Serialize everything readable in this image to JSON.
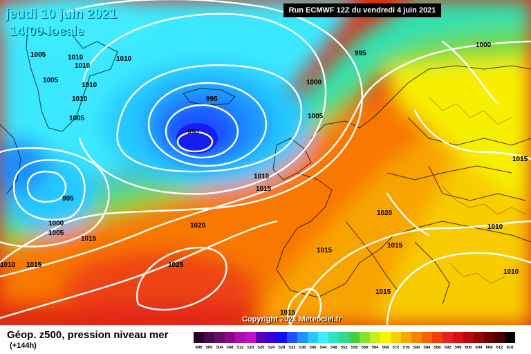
{
  "header": {
    "date_label": "jeudi 10 juin 2021",
    "time_label": "14:00 locale",
    "run_label": "Run ECMWF 12Z du vendredi 4 juin 2021"
  },
  "copyright": "Copyright 2021 Meteociel.fr",
  "pressure_labels": [
    {
      "id": "p-1005-a",
      "text": "1005"
    },
    {
      "id": "p-1010-a",
      "text": "1010"
    },
    {
      "id": "p-1010-b",
      "text": "1010"
    },
    {
      "id": "p-1010-c",
      "text": "1010"
    },
    {
      "id": "p-1005-b",
      "text": "1005"
    },
    {
      "id": "p-1010-d",
      "text": "1010"
    },
    {
      "id": "p-1010-e",
      "text": "1010"
    },
    {
      "id": "p-1005-c",
      "text": "1005"
    },
    {
      "id": "p-995-a",
      "text": "995"
    },
    {
      "id": "p-990",
      "text": "990"
    },
    {
      "id": "p-995-b",
      "text": "995"
    },
    {
      "id": "p-1000-a",
      "text": "1000"
    },
    {
      "id": "p-1000-b",
      "text": "1000"
    },
    {
      "id": "p-1005-d",
      "text": "1005"
    },
    {
      "id": "p-1010-f",
      "text": "1010"
    },
    {
      "id": "p-1015-a",
      "text": "1015"
    },
    {
      "id": "p-995-c",
      "text": "995"
    },
    {
      "id": "p-1000-c",
      "text": "1000"
    },
    {
      "id": "p-1005-e",
      "text": "1005"
    },
    {
      "id": "p-1015-b",
      "text": "1015"
    },
    {
      "id": "p-1010-g",
      "text": "1010"
    },
    {
      "id": "p-1015-c",
      "text": "1015"
    },
    {
      "id": "p-1020-a",
      "text": "1020"
    },
    {
      "id": "p-1025",
      "text": "1025"
    },
    {
      "id": "p-1020-b",
      "text": "1020"
    },
    {
      "id": "p-1015-d",
      "text": "1015"
    },
    {
      "id": "p-1015-e",
      "text": "1015"
    },
    {
      "id": "p-1015-f",
      "text": "1015"
    },
    {
      "id": "p-1015-g",
      "text": "1015"
    },
    {
      "id": "p-1015-h",
      "text": "1015"
    },
    {
      "id": "p-1010-h",
      "text": "1010"
    },
    {
      "id": "p-1010-i",
      "text": "1010"
    }
  ],
  "legend": {
    "title": "Géop. z500, pression niveau mer",
    "subtitle": "(+144h)",
    "scale": [
      {
        "value": "496",
        "color": "#2a002a"
      },
      {
        "value": "500",
        "color": "#4a0a4a"
      },
      {
        "value": "504",
        "color": "#6a0a6a"
      },
      {
        "value": "508",
        "color": "#8a0a8a"
      },
      {
        "value": "512",
        "color": "#aa10aa"
      },
      {
        "value": "516",
        "color": "#c010c0"
      },
      {
        "value": "520",
        "color": "#5a00b4"
      },
      {
        "value": "524",
        "color": "#3800d8"
      },
      {
        "value": "528",
        "color": "#1010f0"
      },
      {
        "value": "532",
        "color": "#1e50ff"
      },
      {
        "value": "536",
        "color": "#1e90ff"
      },
      {
        "value": "540",
        "color": "#28c8ff"
      },
      {
        "value": "544",
        "color": "#40ecff"
      },
      {
        "value": "548",
        "color": "#30e4c0"
      },
      {
        "value": "552",
        "color": "#30d890"
      },
      {
        "value": "556",
        "color": "#40d040"
      },
      {
        "value": "560",
        "color": "#88e030"
      },
      {
        "value": "564",
        "color": "#c8ee20"
      },
      {
        "value": "568",
        "color": "#f6f600"
      },
      {
        "value": "572",
        "color": "#f6d000"
      },
      {
        "value": "576",
        "color": "#f6aa00"
      },
      {
        "value": "580",
        "color": "#f88400"
      },
      {
        "value": "584",
        "color": "#f86000"
      },
      {
        "value": "588",
        "color": "#f04000"
      },
      {
        "value": "592",
        "color": "#e82020"
      },
      {
        "value": "596",
        "color": "#d81010"
      },
      {
        "value": "600",
        "color": "#b80808"
      },
      {
        "value": "604",
        "color": "#960404"
      },
      {
        "value": "608",
        "color": "#700000"
      },
      {
        "value": "612",
        "color": "#4a0000"
      },
      {
        "value": "616",
        "color": "#000000"
      }
    ]
  }
}
